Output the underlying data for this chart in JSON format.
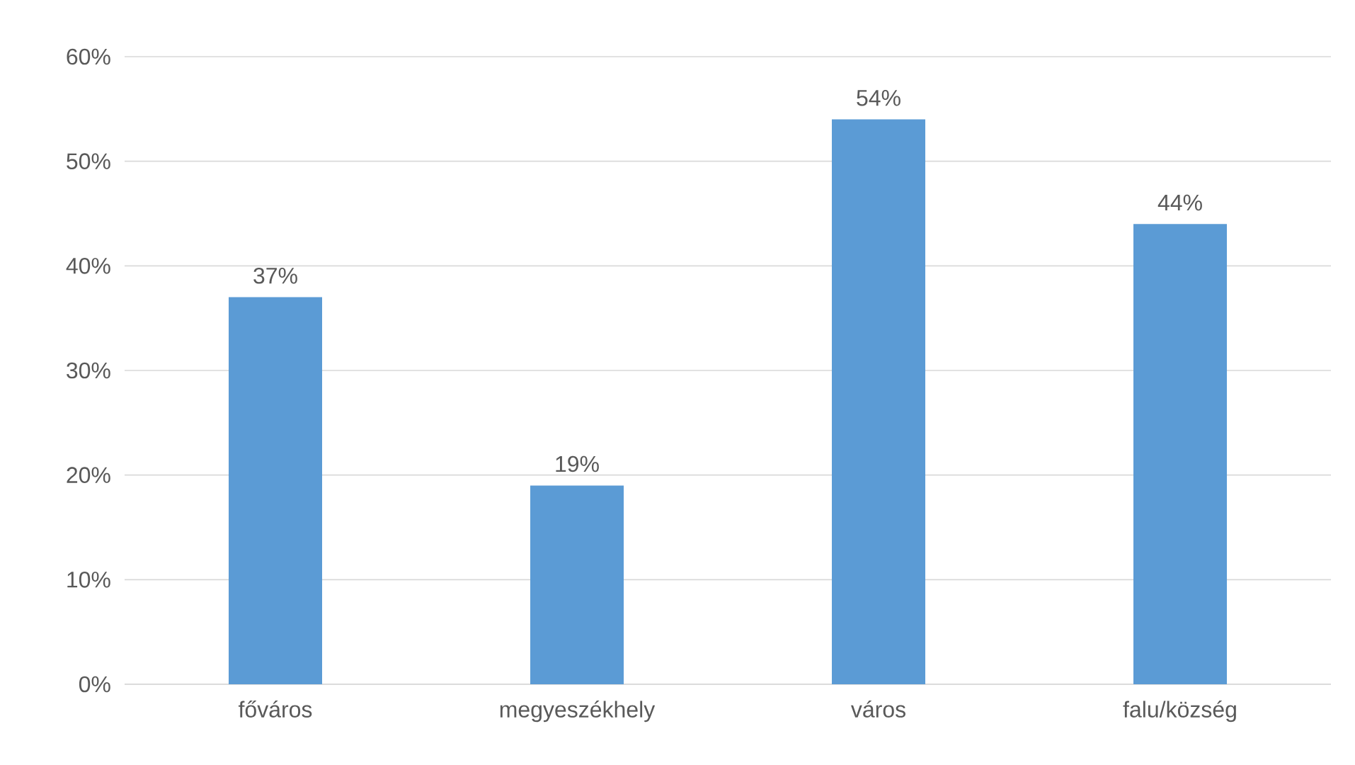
{
  "chart_data": {
    "type": "bar",
    "categories": [
      "főváros",
      "megyeszékhely",
      "város",
      "falu/község"
    ],
    "values": [
      37,
      19,
      54,
      44
    ],
    "color": "#5b9bd5",
    "value_labels": [
      "37%",
      "19%",
      "54%",
      "44%"
    ],
    "ylim": [
      0,
      60
    ],
    "yticks": [
      {
        "value": 0,
        "label": "0%"
      },
      {
        "value": 10,
        "label": "10%"
      },
      {
        "value": 20,
        "label": "20%"
      },
      {
        "value": 30,
        "label": "30%"
      },
      {
        "value": 40,
        "label": "40%"
      },
      {
        "value": 50,
        "label": "50%"
      },
      {
        "value": 60,
        "label": "60%"
      }
    ],
    "grid": "y"
  }
}
